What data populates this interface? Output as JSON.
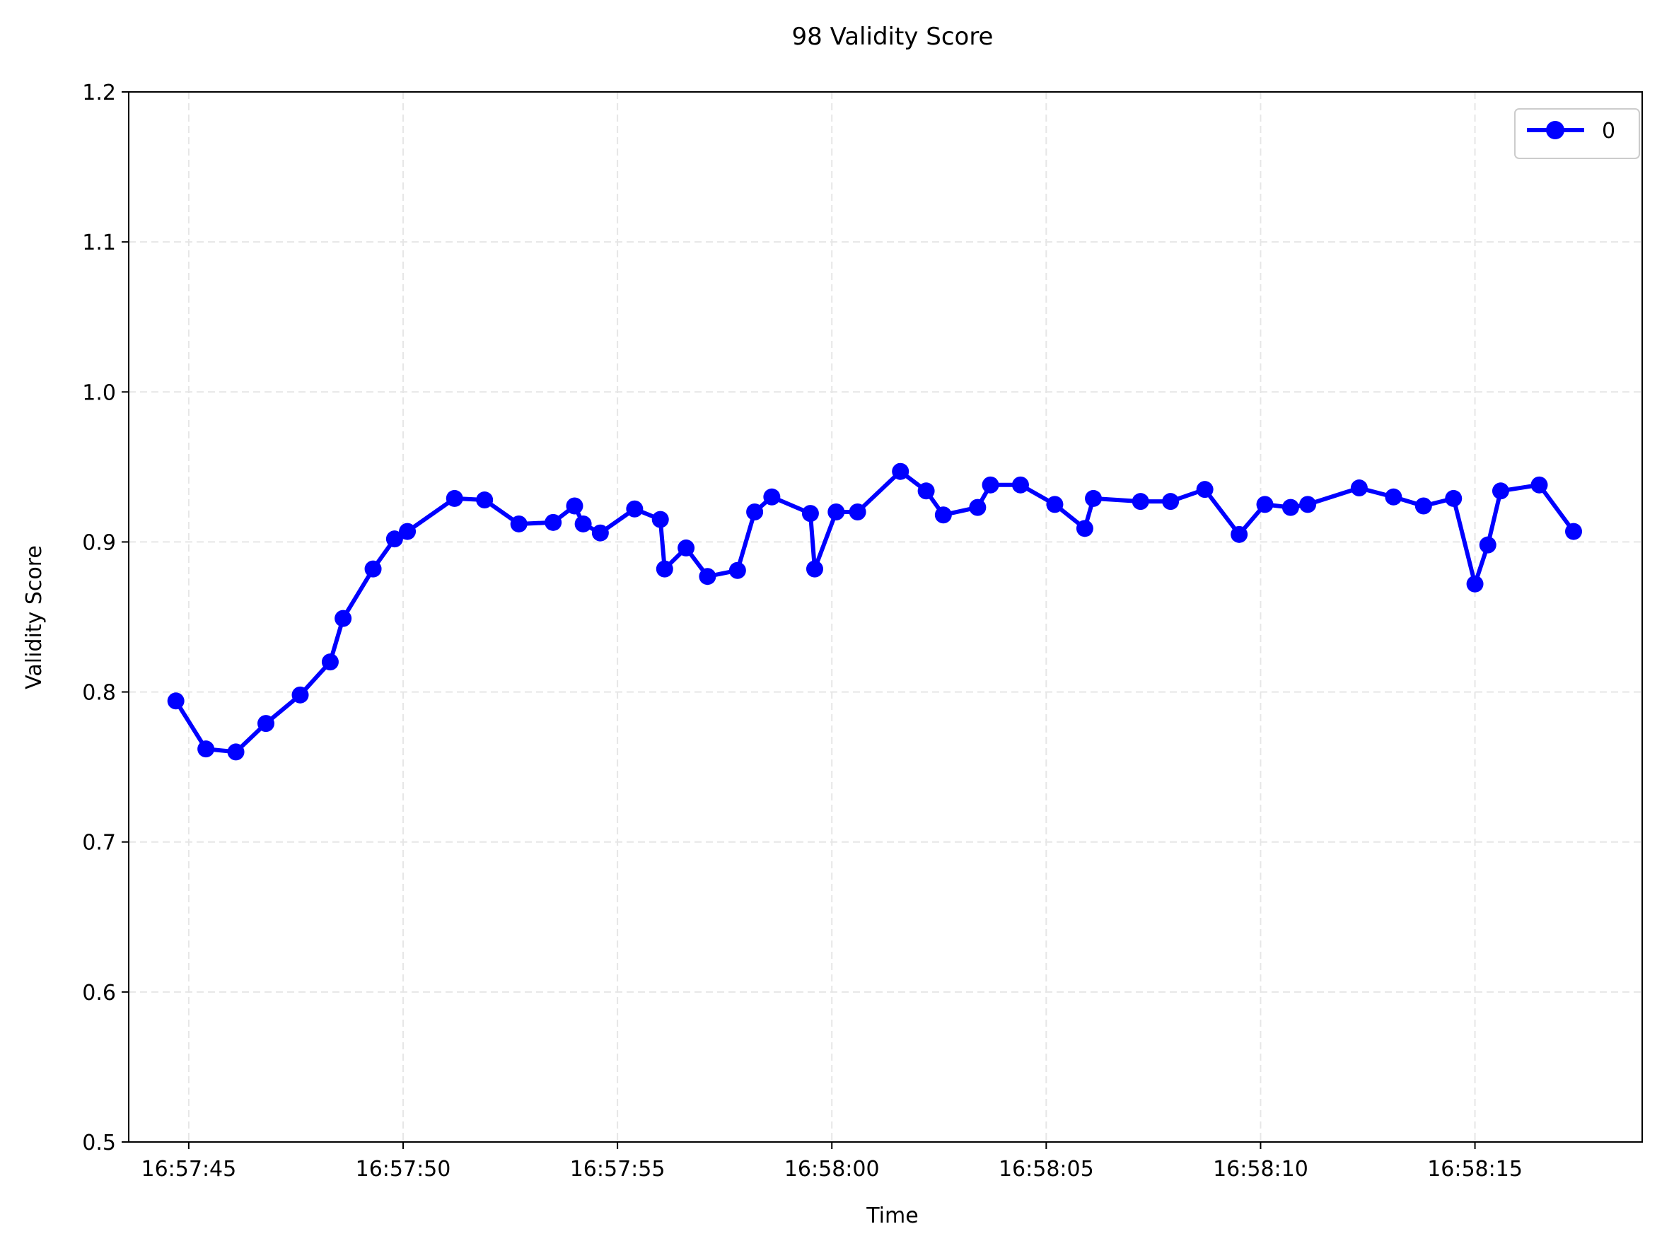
{
  "chart_data": {
    "type": "line",
    "title": "98 Validity Score",
    "xlabel": "Time",
    "ylabel": "Validity Score",
    "ylim": [
      0.5,
      1.2
    ],
    "xlim": [
      "16:57:43.6",
      "16:58:18.9"
    ],
    "xtick_labels": [
      "16:57:45",
      "16:57:50",
      "16:57:55",
      "16:58:00",
      "16:58:05",
      "16:58:10",
      "16:58:15"
    ],
    "ytick_labels": [
      "0.5",
      "0.6",
      "0.7",
      "0.8",
      "0.9",
      "1.0",
      "1.1",
      "1.2"
    ],
    "grid": true,
    "legend_position": "top-right",
    "colors": {
      "series": "#0000ff",
      "grid": "#e6e6e6",
      "axes": "#000000"
    },
    "series": [
      {
        "name": "0",
        "x": [
          "16:57:44.7",
          "16:57:45.4",
          "16:57:46.1",
          "16:57:46.8",
          "16:57:47.6",
          "16:57:48.3",
          "16:57:48.6",
          "16:57:49.3",
          "16:57:49.8",
          "16:57:50.1",
          "16:57:51.2",
          "16:57:51.9",
          "16:57:52.7",
          "16:57:53.5",
          "16:57:54.0",
          "16:57:54.2",
          "16:57:54.6",
          "16:57:55.4",
          "16:57:56.0",
          "16:57:56.1",
          "16:57:56.6",
          "16:57:57.1",
          "16:57:57.8",
          "16:57:58.2",
          "16:57:58.6",
          "16:57:59.5",
          "16:57:59.6",
          "16:58:00.1",
          "16:58:00.6",
          "16:58:01.6",
          "16:58:02.2",
          "16:58:02.6",
          "16:58:03.4",
          "16:58:03.7",
          "16:58:04.4",
          "16:58:05.2",
          "16:58:05.9",
          "16:58:06.1",
          "16:58:07.2",
          "16:58:07.9",
          "16:58:08.7",
          "16:58:09.5",
          "16:58:10.1",
          "16:58:10.7",
          "16:58:11.1",
          "16:58:12.3",
          "16:58:13.1",
          "16:58:13.8",
          "16:58:14.5",
          "16:58:15.0",
          "16:58:15.3",
          "16:58:15.6",
          "16:58:16.5",
          "16:58:17.3"
        ],
        "y": [
          0.794,
          0.762,
          0.76,
          0.779,
          0.798,
          0.82,
          0.849,
          0.882,
          0.902,
          0.907,
          0.929,
          0.928,
          0.912,
          0.913,
          0.924,
          0.912,
          0.906,
          0.922,
          0.915,
          0.882,
          0.896,
          0.877,
          0.881,
          0.92,
          0.93,
          0.919,
          0.882,
          0.92,
          0.92,
          0.947,
          0.934,
          0.918,
          0.923,
          0.938,
          0.938,
          0.925,
          0.909,
          0.929,
          0.927,
          0.927,
          0.935,
          0.905,
          0.925,
          0.923,
          0.925,
          0.936,
          0.93,
          0.924,
          0.929,
          0.872,
          0.898,
          0.934,
          0.938,
          0.907
        ]
      }
    ]
  }
}
